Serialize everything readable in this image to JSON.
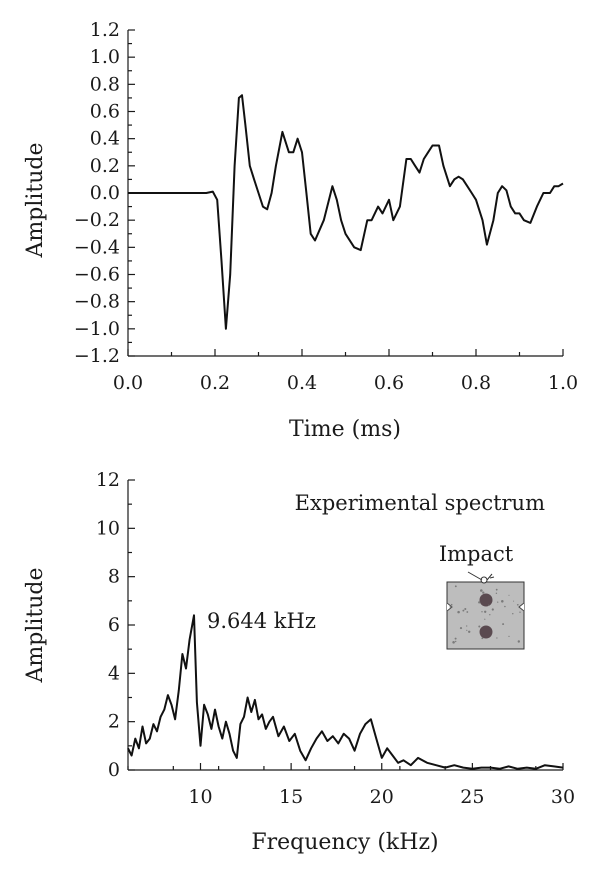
{
  "chart_data": [
    {
      "type": "line",
      "xlabel": "Time (ms)",
      "ylabel": "Amplitude",
      "xlim": [
        0.0,
        1.0
      ],
      "ylim": [
        -1.2,
        1.2
      ],
      "x_ticks": [
        "0.0",
        "0.2",
        "0.4",
        "0.6",
        "0.8",
        "1.0"
      ],
      "y_ticks": [
        "-1.2",
        "-1.0",
        "-0.8",
        "-0.6",
        "-0.4",
        "-0.2",
        "0.0",
        "0.2",
        "0.4",
        "0.6",
        "0.8",
        "1.0",
        "1.2"
      ],
      "grid": false,
      "series": [
        {
          "color": "#111111",
          "x": [
            0.0,
            0.05,
            0.1,
            0.15,
            0.18,
            0.195,
            0.205,
            0.215,
            0.225,
            0.235,
            0.245,
            0.255,
            0.262,
            0.27,
            0.28,
            0.29,
            0.3,
            0.31,
            0.32,
            0.33,
            0.34,
            0.355,
            0.37,
            0.38,
            0.39,
            0.4,
            0.41,
            0.42,
            0.43,
            0.45,
            0.47,
            0.48,
            0.49,
            0.5,
            0.52,
            0.535,
            0.55,
            0.56,
            0.575,
            0.585,
            0.6,
            0.61,
            0.625,
            0.64,
            0.65,
            0.66,
            0.67,
            0.68,
            0.69,
            0.7,
            0.715,
            0.725,
            0.74,
            0.75,
            0.76,
            0.77,
            0.78,
            0.79,
            0.8,
            0.815,
            0.825,
            0.84,
            0.85,
            0.86,
            0.87,
            0.88,
            0.89,
            0.9,
            0.91,
            0.925,
            0.94,
            0.955,
            0.97,
            0.98,
            0.99,
            1.0
          ],
          "y": [
            0.0,
            0.0,
            0.0,
            0.0,
            0.0,
            0.01,
            -0.05,
            -0.5,
            -1.0,
            -0.6,
            0.2,
            0.7,
            0.72,
            0.5,
            0.2,
            0.1,
            0.0,
            -0.1,
            -0.12,
            0.0,
            0.2,
            0.45,
            0.3,
            0.3,
            0.4,
            0.3,
            0.0,
            -0.3,
            -0.35,
            -0.2,
            0.05,
            -0.05,
            -0.2,
            -0.3,
            -0.4,
            -0.42,
            -0.2,
            -0.2,
            -0.1,
            -0.15,
            -0.05,
            -0.2,
            -0.1,
            0.25,
            0.25,
            0.2,
            0.15,
            0.25,
            0.3,
            0.35,
            0.35,
            0.2,
            0.05,
            0.1,
            0.12,
            0.1,
            0.05,
            0.0,
            -0.05,
            -0.2,
            -0.38,
            -0.2,
            0.0,
            0.05,
            0.02,
            -0.1,
            -0.15,
            -0.15,
            -0.2,
            -0.22,
            -0.1,
            0.0,
            0.0,
            0.05,
            0.05,
            0.07
          ]
        }
      ]
    },
    {
      "type": "line",
      "xlabel": "Frequency (kHz)",
      "ylabel": "Amplitude",
      "xlim": [
        6,
        30
      ],
      "ylim": [
        0,
        12
      ],
      "x_ticks": [
        "10",
        "15",
        "20",
        "25",
        "30"
      ],
      "y_ticks": [
        "0",
        "2",
        "4",
        "6",
        "8",
        "10",
        "12"
      ],
      "grid": false,
      "legend": "top-right",
      "annotations": [
        {
          "text": "Experimental spectrum",
          "position": "top-right"
        },
        {
          "text": "9.644 kHz",
          "x": 9.644,
          "y": 6.4
        },
        {
          "text": "Impact",
          "position": "inset"
        }
      ],
      "series": [
        {
          "color": "#111111",
          "x": [
            6.0,
            6.2,
            6.4,
            6.6,
            6.8,
            7.0,
            7.2,
            7.4,
            7.6,
            7.8,
            8.0,
            8.2,
            8.4,
            8.6,
            8.8,
            9.0,
            9.2,
            9.4,
            9.644,
            9.8,
            10.0,
            10.2,
            10.4,
            10.6,
            10.8,
            11.0,
            11.2,
            11.4,
            11.6,
            11.8,
            12.0,
            12.2,
            12.4,
            12.6,
            12.8,
            13.0,
            13.2,
            13.4,
            13.6,
            13.8,
            14.0,
            14.3,
            14.6,
            14.9,
            15.2,
            15.5,
            15.8,
            16.1,
            16.4,
            16.7,
            17.0,
            17.3,
            17.6,
            17.9,
            18.2,
            18.5,
            18.8,
            19.1,
            19.4,
            19.7,
            20.0,
            20.3,
            20.6,
            20.9,
            21.2,
            21.6,
            22.0,
            22.5,
            23.0,
            23.5,
            24.0,
            24.5,
            25.0,
            25.5,
            26.0,
            26.5,
            27.0,
            27.5,
            28.0,
            28.5,
            29.0,
            29.5,
            30.0
          ],
          "y": [
            0.9,
            0.6,
            1.3,
            0.9,
            1.8,
            1.1,
            1.3,
            1.9,
            1.6,
            2.2,
            2.5,
            3.1,
            2.7,
            2.1,
            3.3,
            4.8,
            4.2,
            5.4,
            6.4,
            2.8,
            1.0,
            2.7,
            2.3,
            1.7,
            2.5,
            1.8,
            1.3,
            2.0,
            1.5,
            0.8,
            0.5,
            1.9,
            2.2,
            3.0,
            2.4,
            2.9,
            2.1,
            2.3,
            1.7,
            2.0,
            2.2,
            1.4,
            1.8,
            1.2,
            1.5,
            0.8,
            0.4,
            0.9,
            1.3,
            1.6,
            1.2,
            1.4,
            1.1,
            1.5,
            1.3,
            0.8,
            1.5,
            1.9,
            2.1,
            1.3,
            0.5,
            0.9,
            0.6,
            0.3,
            0.4,
            0.2,
            0.5,
            0.3,
            0.2,
            0.1,
            0.2,
            0.1,
            0.05,
            0.1,
            0.1,
            0.05,
            0.15,
            0.05,
            0.1,
            0.05,
            0.2,
            0.15,
            0.1
          ]
        }
      ]
    }
  ]
}
